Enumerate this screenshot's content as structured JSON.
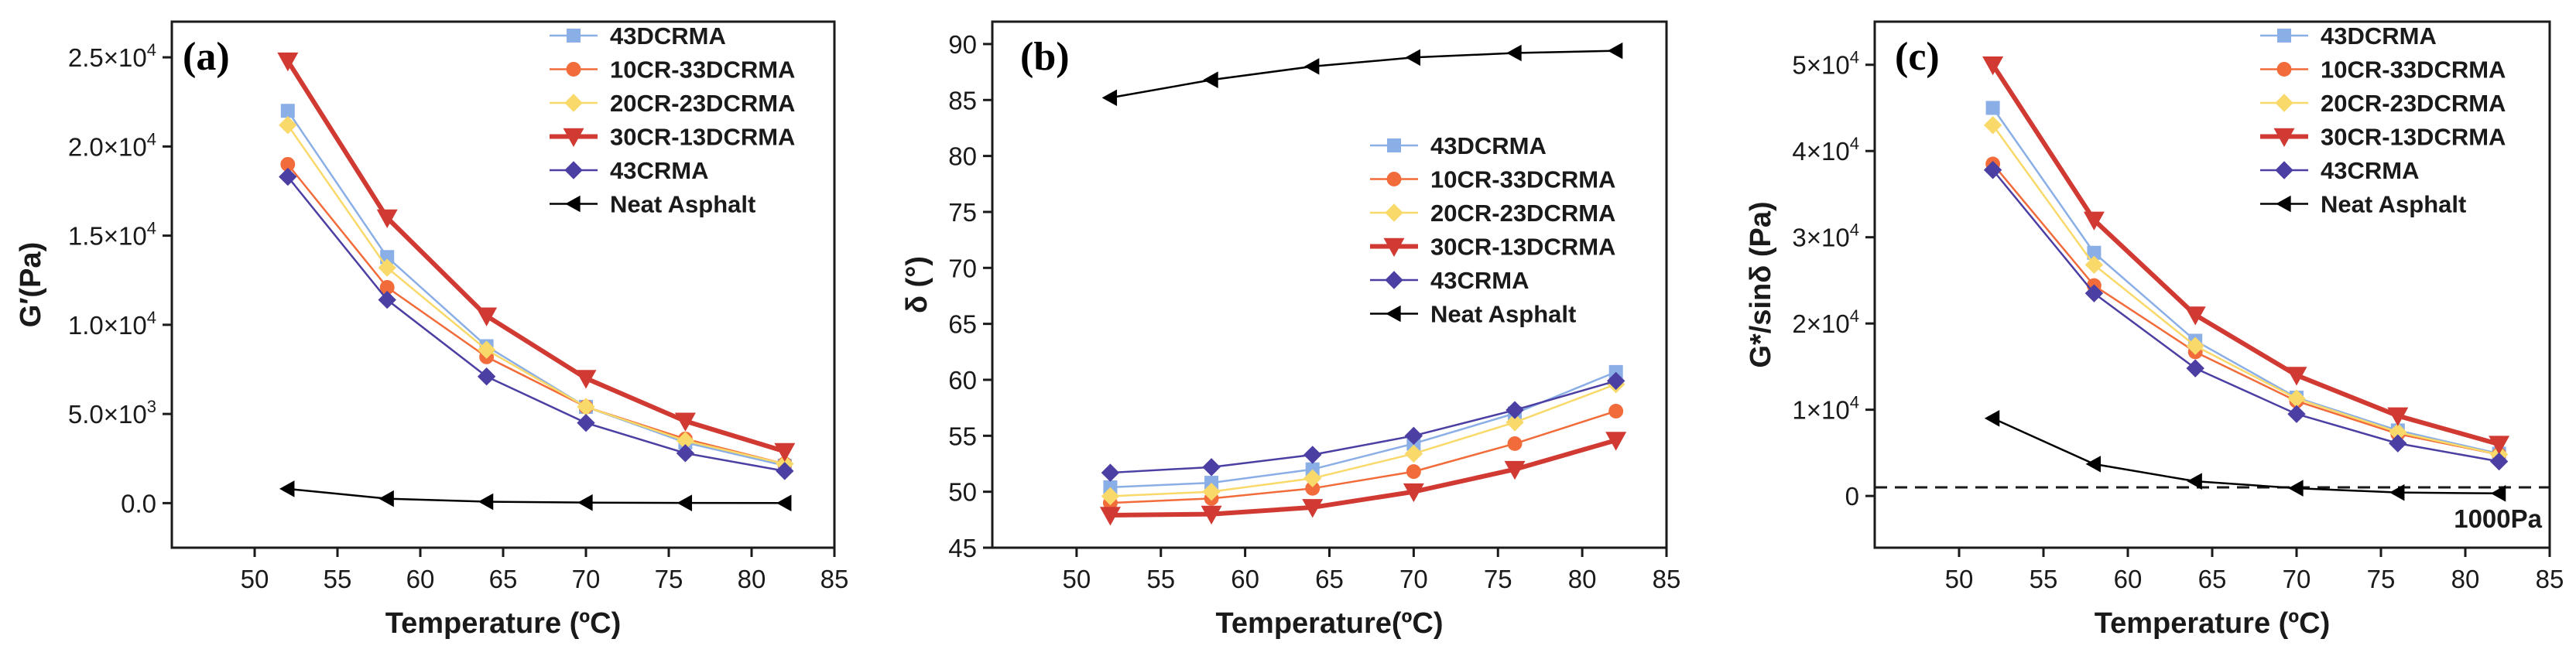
{
  "figure": {
    "panels": [
      {
        "panel_label": "(a)",
        "xlabel": "Temperature (ºC)",
        "ylabel": "G′(Pa)",
        "xlim": [
          45,
          85
        ],
        "ylim": [
          -2500,
          27000
        ],
        "xticks": [
          50,
          55,
          60,
          65,
          70,
          75,
          80,
          85
        ],
        "yticks": [
          {
            "value": 0,
            "label": "0.0"
          },
          {
            "value": 5000,
            "label": "5.0×10",
            "exp": "3"
          },
          {
            "value": 10000,
            "label": "1.0×10",
            "exp": "4"
          },
          {
            "value": 15000,
            "label": "1.5×10",
            "exp": "4"
          },
          {
            "value": 20000,
            "label": "2.0×10",
            "exp": "4"
          },
          {
            "value": 25000,
            "label": "2.5×10",
            "exp": "4"
          }
        ],
        "legend_pos": "top-right"
      },
      {
        "panel_label": "(b)",
        "xlabel": "Temperature(ºC)",
        "ylabel": "δ (°)",
        "xlim": [
          45,
          85
        ],
        "ylim": [
          45,
          92
        ],
        "xticks": [
          50,
          55,
          60,
          65,
          70,
          75,
          80,
          85
        ],
        "yticks": [
          {
            "value": 45,
            "label": "45"
          },
          {
            "value": 50,
            "label": "50"
          },
          {
            "value": 55,
            "label": "55"
          },
          {
            "value": 60,
            "label": "60"
          },
          {
            "value": 65,
            "label": "65"
          },
          {
            "value": 70,
            "label": "70"
          },
          {
            "value": 75,
            "label": "75"
          },
          {
            "value": 80,
            "label": "80"
          },
          {
            "value": 85,
            "label": "85"
          },
          {
            "value": 90,
            "label": "90"
          }
        ],
        "legend_pos": "right-middle"
      },
      {
        "panel_label": "(c)",
        "xlabel": "Temperature (ºC)",
        "ylabel": "G*/sinδ (Pa)",
        "xlim": [
          45,
          85
        ],
        "ylim": [
          -6000,
          55000
        ],
        "xticks": [
          50,
          55,
          60,
          65,
          70,
          75,
          80,
          85
        ],
        "yticks": [
          {
            "value": 0,
            "label": "0"
          },
          {
            "value": 10000,
            "label": "1×10",
            "exp": "4"
          },
          {
            "value": 20000,
            "label": "2×10",
            "exp": "4"
          },
          {
            "value": 30000,
            "label": "3×10",
            "exp": "4"
          },
          {
            "value": 40000,
            "label": "4×10",
            "exp": "4"
          },
          {
            "value": 50000,
            "label": "5×10",
            "exp": "4"
          }
        ],
        "legend_pos": "top-right",
        "reference_line": {
          "value": 1000,
          "label": "1000Pa"
        }
      }
    ]
  },
  "chart_data": [
    {
      "type": "line",
      "title": "(a)",
      "xlabel": "Temperature (ºC)",
      "ylabel": "G′(Pa)",
      "x": [
        52,
        58,
        64,
        70,
        76,
        82
      ],
      "ylim": [
        -2500,
        27000
      ],
      "series": [
        {
          "name": "43DCRMA",
          "color": "#8aaee6",
          "marker": "square",
          "width": 2.5,
          "values": [
            22000,
            13800,
            8800,
            5400,
            3400,
            2100
          ]
        },
        {
          "name": "10CR-33DCRMA",
          "color": "#f26b3a",
          "marker": "circle",
          "width": 2.5,
          "values": [
            19000,
            12100,
            8200,
            5400,
            3600,
            2200
          ]
        },
        {
          "name": "20CR-23DCRMA",
          "color": "#f8d96a",
          "marker": "diamond",
          "width": 2.5,
          "values": [
            21200,
            13200,
            8600,
            5400,
            3500,
            2200
          ]
        },
        {
          "name": "30CR-13DCRMA",
          "color": "#d13a33",
          "marker": "triangle-down",
          "width": 6,
          "values": [
            24800,
            16000,
            10500,
            7000,
            4600,
            2900
          ]
        },
        {
          "name": "43CRMA",
          "color": "#4b3fa3",
          "marker": "diamond",
          "width": 2.5,
          "values": [
            18300,
            11400,
            7100,
            4500,
            2800,
            1800
          ]
        },
        {
          "name": "Neat Asphalt",
          "color": "#000000",
          "marker": "triangle-left",
          "width": 2.5,
          "values": [
            800,
            250,
            80,
            30,
            10,
            5
          ]
        }
      ]
    },
    {
      "type": "line",
      "title": "(b)",
      "xlabel": "Temperature(ºC)",
      "ylabel": "δ (°)",
      "x": [
        52,
        58,
        64,
        70,
        76,
        82
      ],
      "ylim": [
        45,
        92
      ],
      "series": [
        {
          "name": "43DCRMA",
          "color": "#8aaee6",
          "marker": "square",
          "width": 2.5,
          "values": [
            50.4,
            50.8,
            52.0,
            54.3,
            57.0,
            60.7
          ]
        },
        {
          "name": "10CR-33DCRMA",
          "color": "#f26b3a",
          "marker": "circle",
          "width": 2.5,
          "values": [
            49.0,
            49.4,
            50.3,
            51.8,
            54.3,
            57.2
          ]
        },
        {
          "name": "20CR-23DCRMA",
          "color": "#f8d96a",
          "marker": "diamond",
          "width": 2.5,
          "values": [
            49.6,
            50.0,
            51.2,
            53.4,
            56.2,
            59.6
          ]
        },
        {
          "name": "30CR-13DCRMA",
          "color": "#d13a33",
          "marker": "triangle-down",
          "width": 6,
          "values": [
            47.9,
            48.0,
            48.6,
            50.0,
            52.0,
            54.6
          ]
        },
        {
          "name": "43CRMA",
          "color": "#4b3fa3",
          "marker": "diamond",
          "width": 2.5,
          "values": [
            51.7,
            52.2,
            53.3,
            55.0,
            57.3,
            59.9
          ]
        },
        {
          "name": "Neat Asphalt",
          "color": "#000000",
          "marker": "triangle-left",
          "width": 2.5,
          "values": [
            85.2,
            86.8,
            88.0,
            88.8,
            89.2,
            89.4
          ]
        }
      ]
    },
    {
      "type": "line",
      "title": "(c)",
      "xlabel": "Temperature (ºC)",
      "ylabel": "G*/sinδ (Pa)",
      "x": [
        52,
        58,
        64,
        70,
        76,
        82
      ],
      "ylim": [
        -6000,
        55000
      ],
      "series": [
        {
          "name": "43DCRMA",
          "color": "#8aaee6",
          "marker": "square",
          "width": 2.5,
          "values": [
            45000,
            28200,
            18000,
            11400,
            7600,
            4900
          ]
        },
        {
          "name": "10CR-33DCRMA",
          "color": "#f26b3a",
          "marker": "circle",
          "width": 2.5,
          "values": [
            38500,
            24400,
            16700,
            11000,
            7200,
            4800
          ]
        },
        {
          "name": "20CR-23DCRMA",
          "color": "#f8d96a",
          "marker": "diamond",
          "width": 2.5,
          "values": [
            43000,
            26800,
            17400,
            11300,
            7400,
            4800
          ]
        },
        {
          "name": "30CR-13DCRMA",
          "color": "#d13a33",
          "marker": "triangle-down",
          "width": 6,
          "values": [
            50000,
            32000,
            21000,
            14000,
            9300,
            6000
          ]
        },
        {
          "name": "43CRMA",
          "color": "#4b3fa3",
          "marker": "diamond",
          "width": 2.5,
          "values": [
            37800,
            23500,
            14800,
            9500,
            6100,
            4000
          ]
        },
        {
          "name": "Neat Asphalt",
          "color": "#000000",
          "marker": "triangle-left",
          "width": 2.5,
          "values": [
            9000,
            3700,
            1700,
            900,
            400,
            300
          ]
        }
      ]
    }
  ]
}
